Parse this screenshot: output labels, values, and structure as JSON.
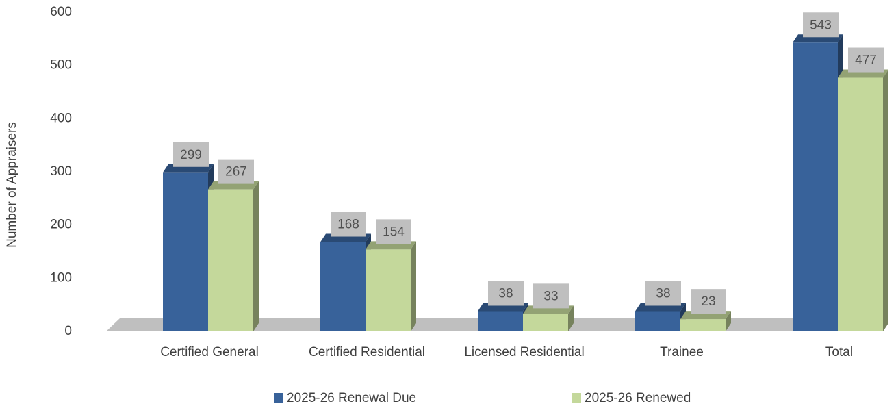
{
  "chart_data": {
    "type": "bar3d",
    "y_axis_label": "Number of Appraisers",
    "categories": [
      "Certified General",
      "Certified Residential",
      "Licensed Residential",
      "Trainee",
      "Total"
    ],
    "series": [
      {
        "name": "2025-26 Renewal Due",
        "color": "#38629a",
        "values": [
          299,
          168,
          38,
          38,
          543
        ]
      },
      {
        "name": "2025-26 Renewed",
        "color": "#c4d89b",
        "values": [
          267,
          154,
          33,
          23,
          477
        ]
      }
    ],
    "ylim": [
      0,
      600
    ],
    "yticks": [
      0,
      100,
      200,
      300,
      400,
      500,
      600
    ],
    "grid": false,
    "legend": "bottom"
  }
}
